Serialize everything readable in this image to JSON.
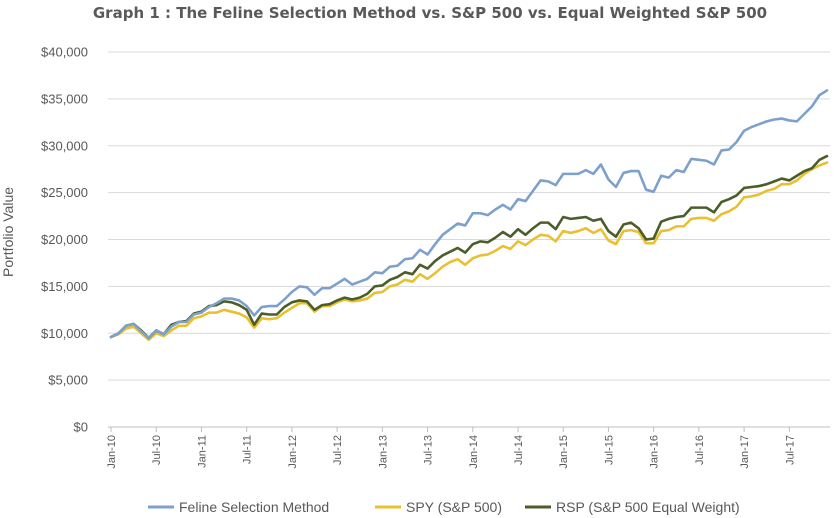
{
  "chart_data": {
    "type": "line",
    "title": "Graph 1 : The Feline Selection Method vs. S&P 500 vs. Equal Weighted S&P 500",
    "xlabel": "",
    "ylabel": "Portfolio Value",
    "ylim": [
      0,
      40000
    ],
    "yticks": [
      0,
      5000,
      10000,
      15000,
      20000,
      25000,
      30000,
      35000,
      40000
    ],
    "ytick_labels": [
      "$0",
      "$5,000",
      "$10,000",
      "$15,000",
      "$20,000",
      "$25,000",
      "$30,000",
      "$35,000",
      "$40,000"
    ],
    "x_tick_labels": [
      "Jan-10",
      "Jul-10",
      "Jan-11",
      "Jul-11",
      "Jan-12",
      "Jul-12",
      "Jan-13",
      "Jul-13",
      "Jan-14",
      "Jul-14",
      "Jan-15",
      "Jul-15",
      "Jan-16",
      "Jul-16",
      "Jan-17",
      "Jul-17"
    ],
    "x_tick_month_index": [
      0,
      6,
      12,
      18,
      24,
      30,
      36,
      42,
      48,
      54,
      60,
      66,
      72,
      78,
      84,
      90
    ],
    "month_count": 96,
    "legend_position": "bottom",
    "grid": true,
    "series": [
      {
        "name": "Feline Selection Method",
        "color": "#7da0cc",
        "values": [
          9600,
          10000,
          10800,
          11000,
          10200,
          9500,
          10300,
          9900,
          10700,
          11200,
          11200,
          12000,
          12200,
          12800,
          13200,
          13700,
          13700,
          13500,
          12900,
          11900,
          12800,
          12900,
          12900,
          13600,
          14400,
          15000,
          14900,
          14100,
          14800,
          14800,
          15300,
          15800,
          15200,
          15500,
          15800,
          16500,
          16400,
          17100,
          17200,
          17900,
          18000,
          18900,
          18400,
          19500,
          20500,
          21100,
          21700,
          21500,
          22800,
          22800,
          22600,
          23200,
          23700,
          23200,
          24300,
          24100,
          25200,
          26300,
          26200,
          25800,
          27000,
          27000,
          27000,
          27400,
          27000,
          28000,
          26400,
          25600,
          27100,
          27300,
          27300,
          25300,
          25100,
          26800,
          26600,
          27400,
          27200,
          28600,
          28500,
          28400,
          28000,
          29500,
          29600,
          30400,
          31600,
          32000,
          32300,
          32600,
          32800,
          32900,
          32700,
          32600,
          33400,
          34200,
          35400,
          35900
        ]
      },
      {
        "name": "SPY (S&P 500)",
        "color": "#e8c030",
        "values": [
          9600,
          9900,
          10500,
          10700,
          10000,
          9300,
          10000,
          9700,
          10300,
          10800,
          10800,
          11600,
          11800,
          12200,
          12200,
          12500,
          12300,
          12100,
          11700,
          10600,
          11600,
          11500,
          11600,
          12200,
          12700,
          13200,
          13200,
          12300,
          12900,
          12900,
          13300,
          13600,
          13400,
          13500,
          13700,
          14300,
          14400,
          15000,
          15200,
          15700,
          15500,
          16300,
          15800,
          16400,
          17100,
          17600,
          17900,
          17300,
          18000,
          18300,
          18400,
          18800,
          19300,
          19000,
          19800,
          19400,
          20000,
          20500,
          20400,
          19800,
          20900,
          20700,
          20900,
          21200,
          20700,
          21100,
          19900,
          19500,
          20900,
          21000,
          20800,
          19600,
          19600,
          20900,
          21000,
          21400,
          21400,
          22200,
          22300,
          22300,
          22000,
          22700,
          23000,
          23500,
          24500,
          24600,
          24800,
          25200,
          25400,
          25900,
          25900,
          26300,
          27000,
          27500,
          27900,
          28200
        ]
      },
      {
        "name": "RSP (S&P 500 Equal Weight)",
        "color": "#4b5e2a",
        "values": [
          9600,
          10000,
          10800,
          11000,
          10300,
          9500,
          10300,
          9900,
          10900,
          11200,
          11300,
          12100,
          12300,
          12900,
          13000,
          13400,
          13300,
          13000,
          12500,
          10900,
          12100,
          12000,
          12000,
          12800,
          13300,
          13500,
          13400,
          12500,
          13000,
          13100,
          13500,
          13800,
          13600,
          13800,
          14200,
          15000,
          15100,
          15700,
          16000,
          16500,
          16300,
          17300,
          16900,
          17700,
          18300,
          18700,
          19100,
          18600,
          19500,
          19800,
          19700,
          20200,
          20800,
          20300,
          21100,
          20500,
          21200,
          21800,
          21800,
          21100,
          22400,
          22200,
          22300,
          22400,
          22000,
          22200,
          20900,
          20300,
          21600,
          21800,
          21200,
          20000,
          20100,
          21900,
          22200,
          22400,
          22500,
          23400,
          23400,
          23400,
          22900,
          24000,
          24300,
          24700,
          25500,
          25600,
          25700,
          25900,
          26200,
          26500,
          26300,
          26800,
          27300,
          27600,
          28500,
          28900
        ]
      }
    ]
  }
}
